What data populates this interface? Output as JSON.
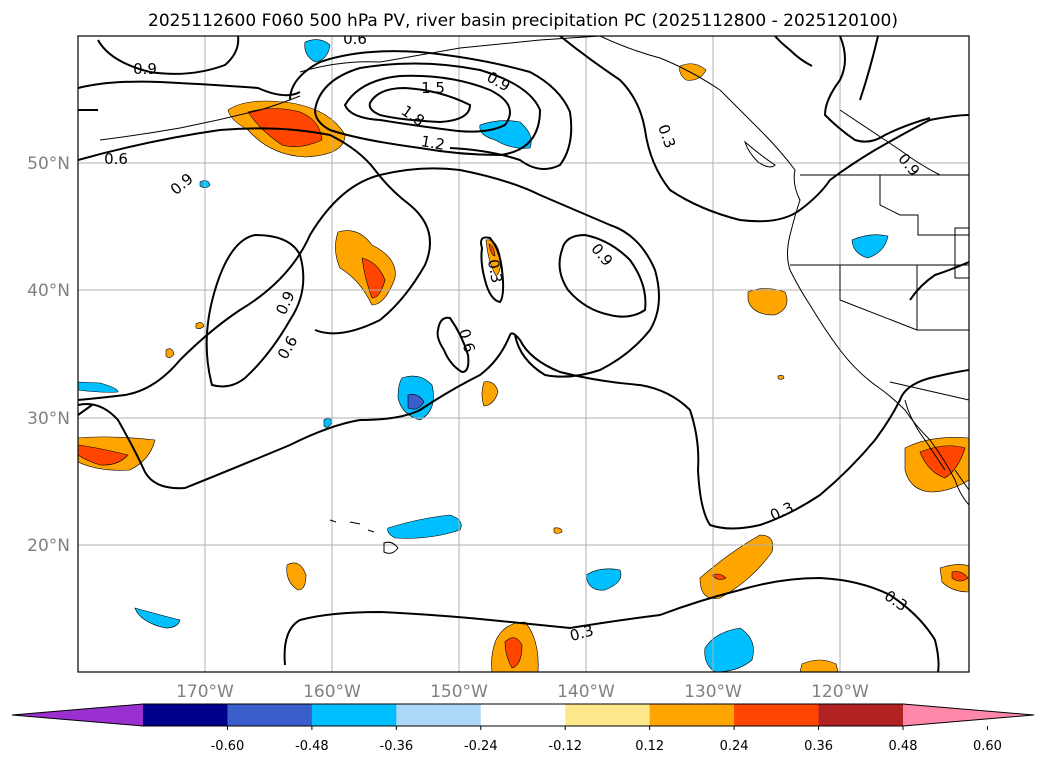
{
  "title": "2025112600 F060 500 hPa PV, river basin precipitation PC (2025112800 - 2025120100)",
  "lat_labels": [
    "50°N",
    "40°N",
    "30°N",
    "20°N"
  ],
  "lon_labels": [
    "170°W",
    "160°W",
    "150°W",
    "140°W",
    "130°W",
    "120°W"
  ],
  "contour_labels": [
    "0.9",
    "0.6",
    "0.9",
    "1.5",
    "1.8",
    "1.2",
    "0.9",
    "0.3",
    "0.9",
    "0.9",
    "0.3",
    "0.6",
    "0.9",
    "0.6",
    "0.3",
    "0.3",
    "0.3",
    "0.6"
  ],
  "colorbar": {
    "ticks": [
      "-0.60",
      "-0.48",
      "-0.36",
      "-0.24",
      "-0.12",
      "0.12",
      "0.24",
      "0.36",
      "0.48",
      "0.60"
    ],
    "colors": [
      "#9b30d0",
      "#00008b",
      "#3a5fcd",
      "#00bfff",
      "#add8f8",
      "#ffffff",
      "#fde98c",
      "#ffa500",
      "#ff4500",
      "#b22222",
      "#ff88aa"
    ]
  },
  "colors": {
    "gridline": "#b0b0b0",
    "axis_label": "#808080",
    "coast": "#000000"
  }
}
